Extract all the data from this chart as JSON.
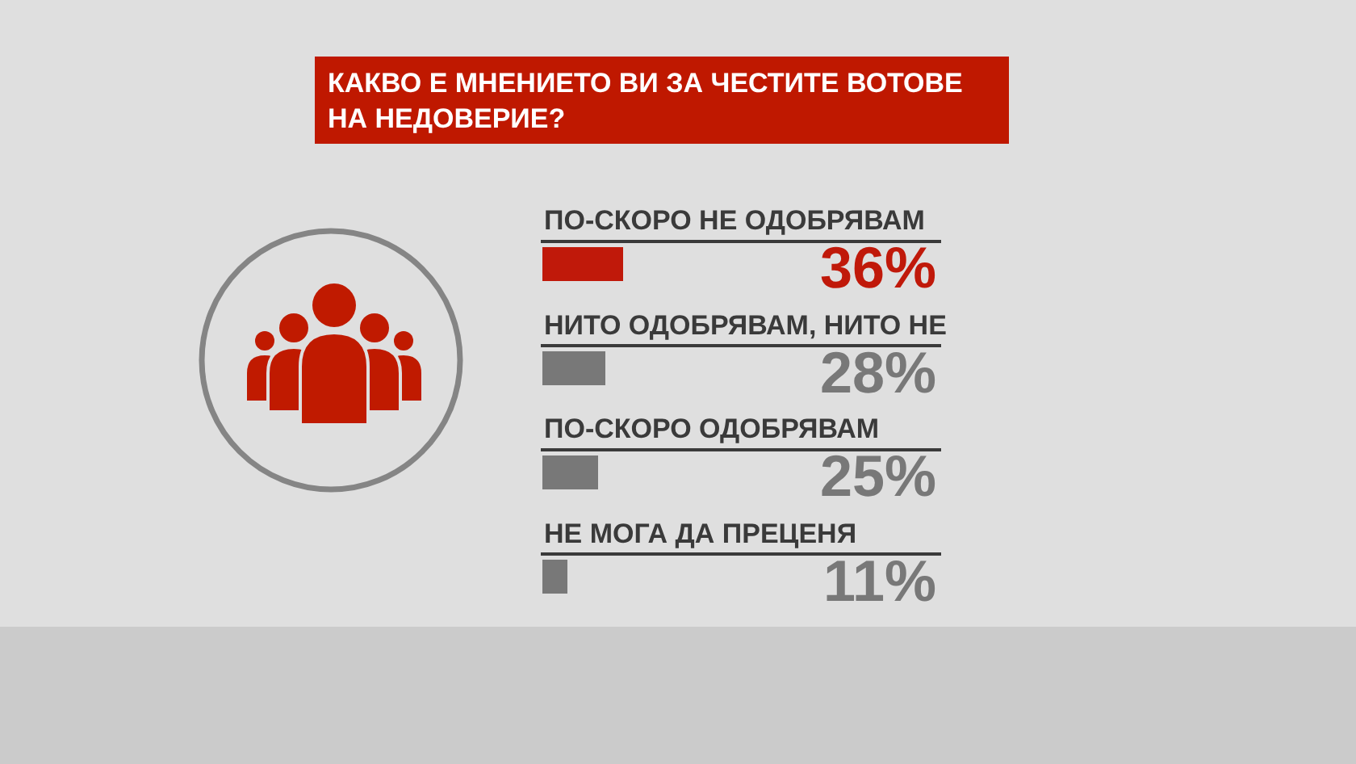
{
  "chart_data": {
    "type": "bar",
    "orientation": "horizontal",
    "title": "КАКВО Е МНЕНИЕТО ВИ ЗА ЧЕСТИТЕ ВОТОВЕ НА НЕДОВЕРИЕ?",
    "categories": [
      "ПО-СКОРО НЕ ОДОБРЯВАМ",
      "НИТО ОДОБРЯВАМ, НИТО НЕ",
      "ПО-СКОРО ОДОБРЯВАМ",
      "НЕ МОГА ДА ПРЕЦЕНЯ"
    ],
    "values": [
      36,
      28,
      25,
      11
    ],
    "colors": [
      "#c0190a",
      "#787878",
      "#787878",
      "#787878"
    ],
    "value_labels": [
      "36%",
      "28%",
      "25%",
      "11%"
    ],
    "tick_labels": "y"
  }
}
